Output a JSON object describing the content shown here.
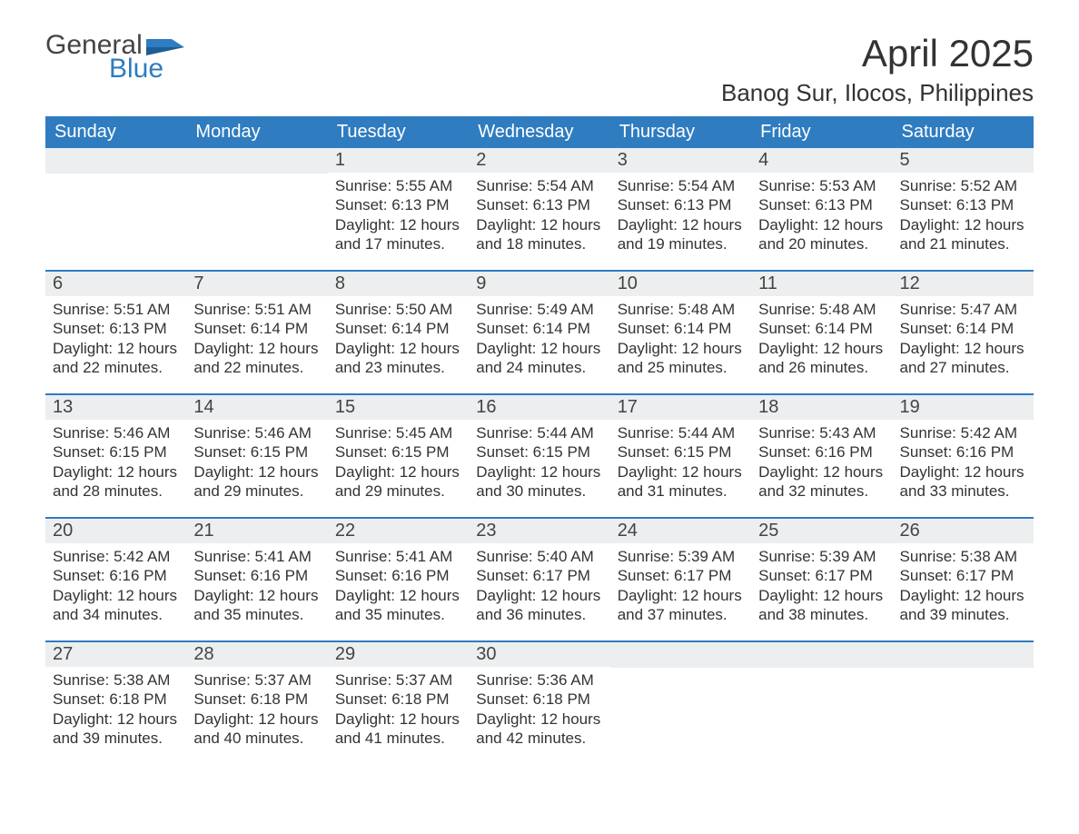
{
  "brand": {
    "word1": "General",
    "word2": "Blue",
    "accent": "#2f7cc0"
  },
  "title": {
    "month": "April 2025",
    "location": "Banog Sur, Ilocos, Philippines"
  },
  "days_of_week": [
    "Sunday",
    "Monday",
    "Tuesday",
    "Wednesday",
    "Thursday",
    "Friday",
    "Saturday"
  ],
  "calendar": {
    "header_bg": "#2f7cc0",
    "header_fg": "#ffffff",
    "daynum_bg": "#eceeef",
    "row_border": "#2f7cc0",
    "text_color": "#333333",
    "font_family": "Arial",
    "title_fontsize": 42,
    "location_fontsize": 26,
    "dow_fontsize": 20,
    "daynum_fontsize": 20,
    "body_fontsize": 17
  },
  "weeks": [
    [
      null,
      null,
      {
        "n": "1",
        "sunrise": "5:55 AM",
        "sunset": "6:13 PM",
        "daylight": "12 hours and 17 minutes."
      },
      {
        "n": "2",
        "sunrise": "5:54 AM",
        "sunset": "6:13 PM",
        "daylight": "12 hours and 18 minutes."
      },
      {
        "n": "3",
        "sunrise": "5:54 AM",
        "sunset": "6:13 PM",
        "daylight": "12 hours and 19 minutes."
      },
      {
        "n": "4",
        "sunrise": "5:53 AM",
        "sunset": "6:13 PM",
        "daylight": "12 hours and 20 minutes."
      },
      {
        "n": "5",
        "sunrise": "5:52 AM",
        "sunset": "6:13 PM",
        "daylight": "12 hours and 21 minutes."
      }
    ],
    [
      {
        "n": "6",
        "sunrise": "5:51 AM",
        "sunset": "6:13 PM",
        "daylight": "12 hours and 22 minutes."
      },
      {
        "n": "7",
        "sunrise": "5:51 AM",
        "sunset": "6:14 PM",
        "daylight": "12 hours and 22 minutes."
      },
      {
        "n": "8",
        "sunrise": "5:50 AM",
        "sunset": "6:14 PM",
        "daylight": "12 hours and 23 minutes."
      },
      {
        "n": "9",
        "sunrise": "5:49 AM",
        "sunset": "6:14 PM",
        "daylight": "12 hours and 24 minutes."
      },
      {
        "n": "10",
        "sunrise": "5:48 AM",
        "sunset": "6:14 PM",
        "daylight": "12 hours and 25 minutes."
      },
      {
        "n": "11",
        "sunrise": "5:48 AM",
        "sunset": "6:14 PM",
        "daylight": "12 hours and 26 minutes."
      },
      {
        "n": "12",
        "sunrise": "5:47 AM",
        "sunset": "6:14 PM",
        "daylight": "12 hours and 27 minutes."
      }
    ],
    [
      {
        "n": "13",
        "sunrise": "5:46 AM",
        "sunset": "6:15 PM",
        "daylight": "12 hours and 28 minutes."
      },
      {
        "n": "14",
        "sunrise": "5:46 AM",
        "sunset": "6:15 PM",
        "daylight": "12 hours and 29 minutes."
      },
      {
        "n": "15",
        "sunrise": "5:45 AM",
        "sunset": "6:15 PM",
        "daylight": "12 hours and 29 minutes."
      },
      {
        "n": "16",
        "sunrise": "5:44 AM",
        "sunset": "6:15 PM",
        "daylight": "12 hours and 30 minutes."
      },
      {
        "n": "17",
        "sunrise": "5:44 AM",
        "sunset": "6:15 PM",
        "daylight": "12 hours and 31 minutes."
      },
      {
        "n": "18",
        "sunrise": "5:43 AM",
        "sunset": "6:16 PM",
        "daylight": "12 hours and 32 minutes."
      },
      {
        "n": "19",
        "sunrise": "5:42 AM",
        "sunset": "6:16 PM",
        "daylight": "12 hours and 33 minutes."
      }
    ],
    [
      {
        "n": "20",
        "sunrise": "5:42 AM",
        "sunset": "6:16 PM",
        "daylight": "12 hours and 34 minutes."
      },
      {
        "n": "21",
        "sunrise": "5:41 AM",
        "sunset": "6:16 PM",
        "daylight": "12 hours and 35 minutes."
      },
      {
        "n": "22",
        "sunrise": "5:41 AM",
        "sunset": "6:16 PM",
        "daylight": "12 hours and 35 minutes."
      },
      {
        "n": "23",
        "sunrise": "5:40 AM",
        "sunset": "6:17 PM",
        "daylight": "12 hours and 36 minutes."
      },
      {
        "n": "24",
        "sunrise": "5:39 AM",
        "sunset": "6:17 PM",
        "daylight": "12 hours and 37 minutes."
      },
      {
        "n": "25",
        "sunrise": "5:39 AM",
        "sunset": "6:17 PM",
        "daylight": "12 hours and 38 minutes."
      },
      {
        "n": "26",
        "sunrise": "5:38 AM",
        "sunset": "6:17 PM",
        "daylight": "12 hours and 39 minutes."
      }
    ],
    [
      {
        "n": "27",
        "sunrise": "5:38 AM",
        "sunset": "6:18 PM",
        "daylight": "12 hours and 39 minutes."
      },
      {
        "n": "28",
        "sunrise": "5:37 AM",
        "sunset": "6:18 PM",
        "daylight": "12 hours and 40 minutes."
      },
      {
        "n": "29",
        "sunrise": "5:37 AM",
        "sunset": "6:18 PM",
        "daylight": "12 hours and 41 minutes."
      },
      {
        "n": "30",
        "sunrise": "5:36 AM",
        "sunset": "6:18 PM",
        "daylight": "12 hours and 42 minutes."
      },
      null,
      null,
      null
    ]
  ],
  "labels": {
    "sunrise": "Sunrise:",
    "sunset": "Sunset:",
    "daylight": "Daylight:"
  }
}
